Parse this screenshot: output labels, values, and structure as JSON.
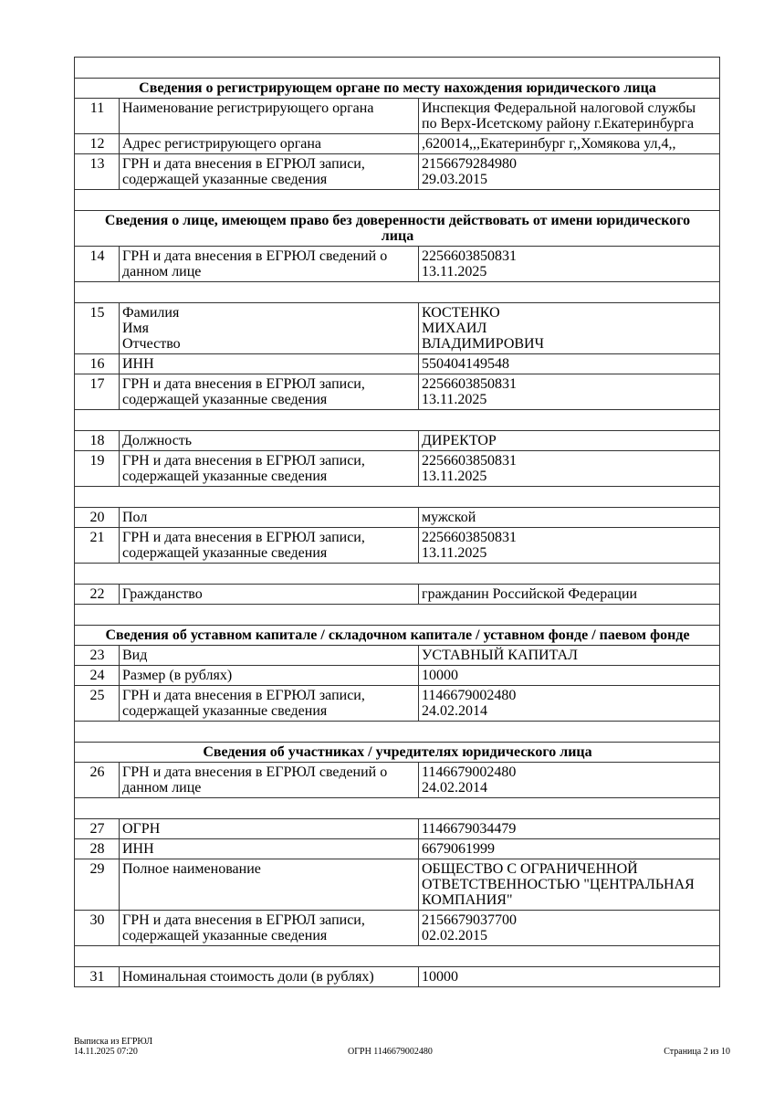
{
  "rows": [
    {
      "type": "blank"
    },
    {
      "type": "head",
      "lines": [
        "Сведения о регистрирующем органе по месту нахождения юридического лица"
      ]
    },
    {
      "type": "row",
      "num": "11",
      "label": [
        "Наименование регистрирующего органа"
      ],
      "value": [
        "Инспекция Федеральной налоговой службы",
        "по Верх-Исетскому району г.Екатеринбурга"
      ]
    },
    {
      "type": "row",
      "num": "12",
      "label": [
        "Адрес регистрирующего органа"
      ],
      "value": [
        ",620014,,,Екатеринбург г,,Хомякова ул,4,,"
      ]
    },
    {
      "type": "row",
      "num": "13",
      "label": [
        "ГРН и дата внесения в ЕГРЮЛ записи,",
        "содержащей указанные сведения"
      ],
      "value": [
        "2156679284980",
        "29.03.2015"
      ]
    },
    {
      "type": "blank"
    },
    {
      "type": "head",
      "lines": [
        "Сведения о лице, имеющем право без доверенности действовать от имени юридического",
        "лица"
      ]
    },
    {
      "type": "row",
      "num": "14",
      "label": [
        "ГРН и дата внесения в ЕГРЮЛ сведений о",
        "данном лице"
      ],
      "value": [
        "2256603850831",
        "13.11.2025"
      ]
    },
    {
      "type": "blank"
    },
    {
      "type": "row",
      "num": "15",
      "label": [
        "Фамилия",
        "Имя",
        "Отчество"
      ],
      "value": [
        "КОСТЕНКО",
        "МИХАИЛ",
        "ВЛАДИМИРОВИЧ"
      ]
    },
    {
      "type": "row",
      "num": "16",
      "label": [
        "ИНН"
      ],
      "value": [
        "550404149548"
      ]
    },
    {
      "type": "row",
      "num": "17",
      "label": [
        "ГРН и дата внесения в ЕГРЮЛ записи,",
        "содержащей указанные сведения"
      ],
      "value": [
        "2256603850831",
        "13.11.2025"
      ]
    },
    {
      "type": "blank"
    },
    {
      "type": "row",
      "num": "18",
      "label": [
        "Должность"
      ],
      "value": [
        "ДИРЕКТОР"
      ]
    },
    {
      "type": "row",
      "num": "19",
      "label": [
        "ГРН и дата внесения в ЕГРЮЛ записи,",
        "содержащей указанные сведения"
      ],
      "value": [
        "2256603850831",
        "13.11.2025"
      ]
    },
    {
      "type": "blank"
    },
    {
      "type": "row",
      "num": "20",
      "label": [
        "Пол"
      ],
      "value": [
        "мужской"
      ]
    },
    {
      "type": "row",
      "num": "21",
      "label": [
        "ГРН и дата внесения в ЕГРЮЛ записи,",
        "содержащей указанные сведения"
      ],
      "value": [
        "2256603850831",
        "13.11.2025"
      ]
    },
    {
      "type": "blank"
    },
    {
      "type": "row",
      "num": "22",
      "label": [
        "Гражданство"
      ],
      "value": [
        "гражданин Российской Федерации"
      ]
    },
    {
      "type": "blank"
    },
    {
      "type": "head",
      "lines": [
        "Сведения об уставном капитале / складочном капитале / уставном фонде / паевом фонде"
      ]
    },
    {
      "type": "row",
      "num": "23",
      "label": [
        "Вид"
      ],
      "value": [
        "УСТАВНЫЙ КАПИТАЛ"
      ]
    },
    {
      "type": "row",
      "num": "24",
      "label": [
        "Размер (в рублях)"
      ],
      "value": [
        "10000"
      ]
    },
    {
      "type": "row",
      "num": "25",
      "label": [
        "ГРН и дата внесения в ЕГРЮЛ записи,",
        "содержащей указанные сведения"
      ],
      "value": [
        "1146679002480",
        "24.02.2014"
      ]
    },
    {
      "type": "blank"
    },
    {
      "type": "head",
      "lines": [
        "Сведения об участниках / учредителях юридического лица"
      ]
    },
    {
      "type": "row",
      "num": "26",
      "label": [
        "ГРН и дата внесения в ЕГРЮЛ сведений о",
        "данном лице"
      ],
      "value": [
        "1146679002480",
        "24.02.2014"
      ]
    },
    {
      "type": "blank"
    },
    {
      "type": "row",
      "num": "27",
      "label": [
        "ОГРН"
      ],
      "value": [
        "1146679034479"
      ]
    },
    {
      "type": "row",
      "num": "28",
      "label": [
        "ИНН"
      ],
      "value": [
        "6679061999"
      ]
    },
    {
      "type": "row",
      "num": "29",
      "label": [
        "Полное наименование"
      ],
      "value": [
        "ОБЩЕСТВО С ОГРАНИЧЕННОЙ",
        "ОТВЕТСТВЕННОСТЬЮ \"ЦЕНТРАЛЬНАЯ",
        "КОМПАНИЯ\""
      ]
    },
    {
      "type": "row",
      "num": "30",
      "label": [
        "ГРН и дата внесения в ЕГРЮЛ записи,",
        "содержащей указанные сведения"
      ],
      "value": [
        "2156679037700",
        "02.02.2015"
      ]
    },
    {
      "type": "blank"
    },
    {
      "type": "row",
      "num": "31",
      "label": [
        "Номинальная стоимость доли (в рублях)"
      ],
      "value": [
        "10000"
      ]
    }
  ],
  "footer": {
    "doc_title": "Выписка из ЕГРЮЛ",
    "datetime": "14.11.2025 07:20",
    "ogrn": "ОГРН 1146679002480",
    "page": "Страница 2 из 10"
  }
}
